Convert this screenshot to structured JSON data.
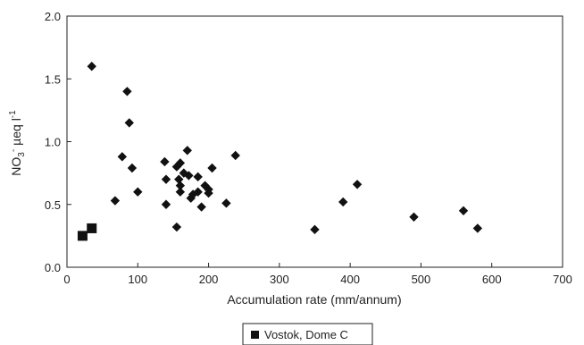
{
  "chart_data": {
    "type": "scatter",
    "xlabel": "Accumulation rate (mm/annum)",
    "ylabel": {
      "main": "NO",
      "subscript": "3",
      "superscript": "-",
      "unit": "µeq l",
      "unit_superscript": "-1"
    },
    "xlim": [
      0,
      700
    ],
    "ylim": [
      0,
      2.0
    ],
    "x_ticks": [
      0,
      100,
      200,
      300,
      400,
      500,
      600,
      700
    ],
    "x_tick_labels": [
      "0",
      "100",
      "200",
      "300",
      "400",
      "500",
      "600",
      "700"
    ],
    "y_ticks": [
      0,
      0.5,
      1.0,
      1.5,
      2.0
    ],
    "y_tick_labels": [
      "0.0",
      "0.5",
      "1.0",
      "1.5",
      "2.0"
    ],
    "grid": false,
    "legend_position": "bottom-center",
    "series": [
      {
        "marker": "diamond",
        "color": "#111111",
        "points": [
          [
            35,
            1.6
          ],
          [
            85,
            1.4
          ],
          [
            88,
            1.15
          ],
          [
            78,
            0.88
          ],
          [
            92,
            0.79
          ],
          [
            68,
            0.53
          ],
          [
            100,
            0.6
          ],
          [
            138,
            0.84
          ],
          [
            140,
            0.7
          ],
          [
            140,
            0.5
          ],
          [
            155,
            0.32
          ],
          [
            155,
            0.8
          ],
          [
            158,
            0.7
          ],
          [
            160,
            0.83
          ],
          [
            160,
            0.65
          ],
          [
            160,
            0.6
          ],
          [
            165,
            0.75
          ],
          [
            170,
            0.93
          ],
          [
            172,
            0.73
          ],
          [
            175,
            0.55
          ],
          [
            178,
            0.58
          ],
          [
            185,
            0.72
          ],
          [
            185,
            0.6
          ],
          [
            190,
            0.48
          ],
          [
            195,
            0.65
          ],
          [
            200,
            0.62
          ],
          [
            200,
            0.59
          ],
          [
            205,
            0.79
          ],
          [
            225,
            0.51
          ],
          [
            238,
            0.89
          ],
          [
            350,
            0.3
          ],
          [
            390,
            0.52
          ],
          [
            410,
            0.66
          ],
          [
            490,
            0.4
          ],
          [
            560,
            0.45
          ],
          [
            580,
            0.31
          ]
        ]
      },
      {
        "name": "Vostok, Dome C",
        "marker": "square",
        "color": "#111111",
        "points": [
          [
            22,
            0.25
          ],
          [
            35,
            0.31
          ]
        ]
      }
    ]
  }
}
